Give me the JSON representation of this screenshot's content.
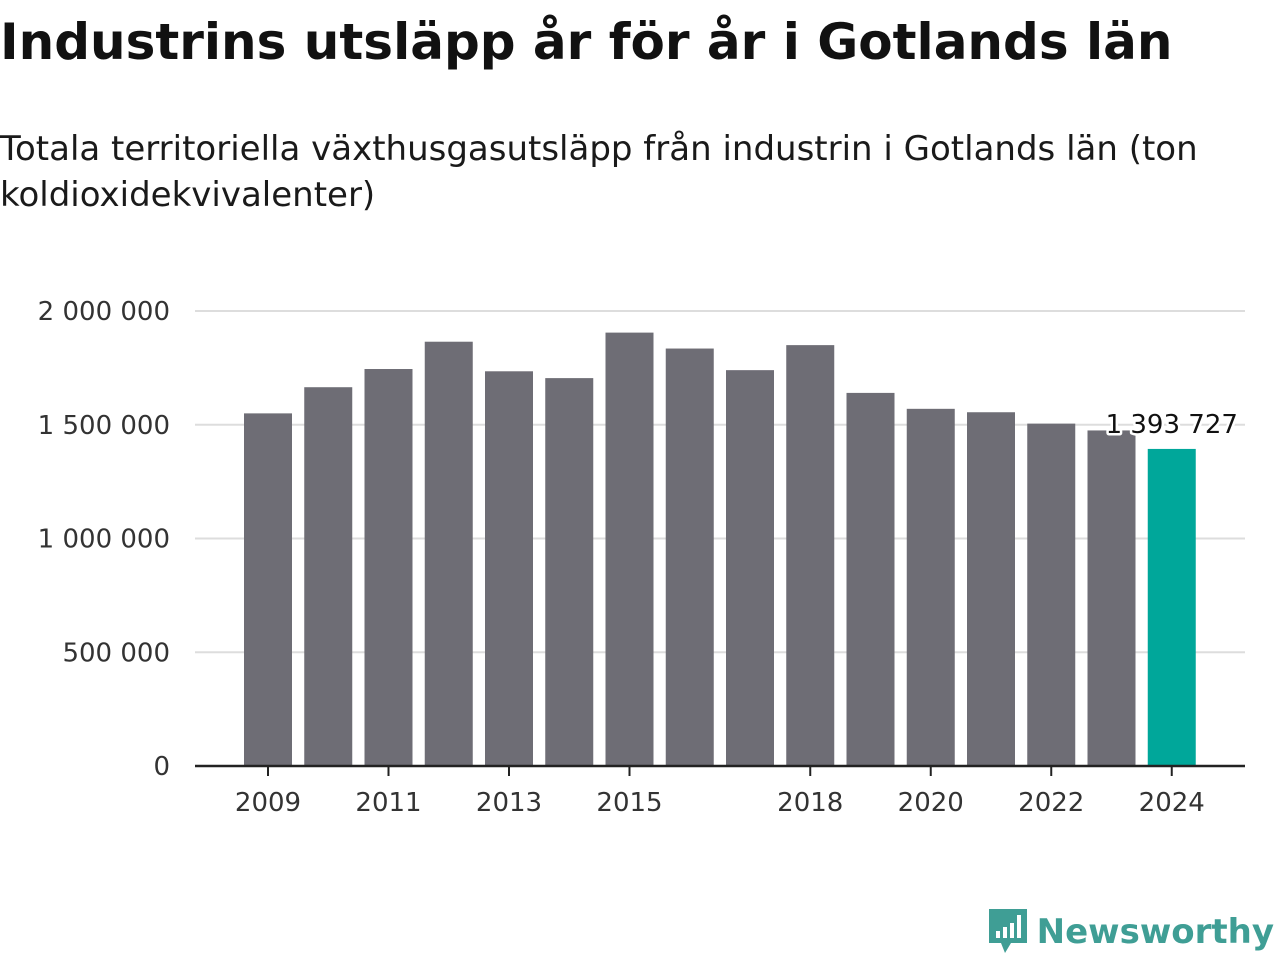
{
  "title": "Industrins utsläpp år för år i Gotlands län",
  "subtitle": "Totala territoriella växthusgasutsläpp från industrin i Gotlands län (ton koldioxidekvivalenter)",
  "brand": {
    "name": "Newsworthy",
    "icon": "newsworthy-logo-icon",
    "color": "#3f9e95"
  },
  "colors": {
    "bar": "#6e6d75",
    "highlight": "#00a79a",
    "grid": "#dddddd",
    "axis": "#222222"
  },
  "chart_data": {
    "type": "bar",
    "categories": [
      "2009",
      "2010",
      "2011",
      "2012",
      "2013",
      "2014",
      "2015",
      "2016",
      "2017",
      "2018",
      "2019",
      "2020",
      "2021",
      "2022",
      "2023",
      "2024"
    ],
    "values": [
      1550000,
      1665000,
      1745000,
      1865000,
      1735000,
      1705000,
      1905000,
      1835000,
      1740000,
      1850000,
      1640000,
      1570000,
      1555000,
      1505000,
      1475000,
      1393727
    ],
    "x_tick_labels": [
      "2009",
      "2011",
      "2013",
      "2015",
      "2018",
      "2020",
      "2022",
      "2024"
    ],
    "y_ticks": [
      0,
      500000,
      1000000,
      1500000,
      2000000
    ],
    "y_tick_labels": [
      "0",
      "500 000",
      "1 000 000",
      "1 500 000",
      "2 000 000"
    ],
    "ylim": [
      0,
      2000000
    ],
    "highlight_index": 15,
    "annotation": "1 393 727",
    "grid": true,
    "xlabel": "",
    "ylabel": ""
  }
}
